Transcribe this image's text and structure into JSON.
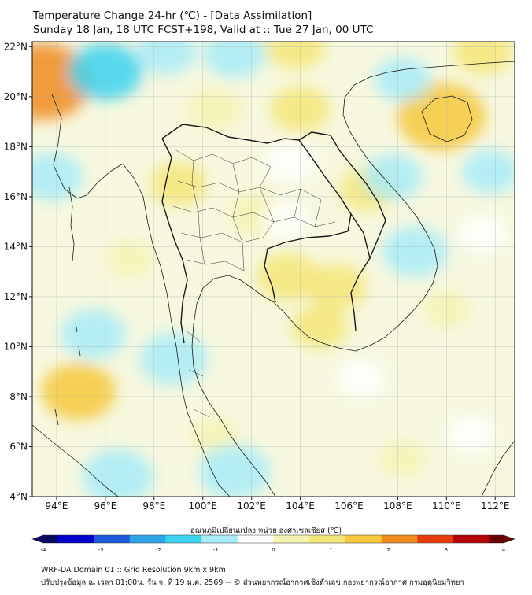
{
  "header": {
    "title": "Temperature Change 24-hr (℃) - [Data Assimilation]",
    "subtitle": "Sunday 18 Jan, 18 UTC FCST+198, Valid at :: Tue 27 Jan, 00 UTC"
  },
  "axes": {
    "lat_ticks": [
      "22°N",
      "20°N",
      "18°N",
      "16°N",
      "14°N",
      "12°N",
      "10°N",
      "8°N",
      "6°N",
      "4°N"
    ],
    "lat_values": [
      22,
      20,
      18,
      16,
      14,
      12,
      10,
      8,
      6,
      4
    ],
    "lon_ticks": [
      "94°E",
      "96°E",
      "98°E",
      "100°E",
      "102°E",
      "104°E",
      "106°E",
      "108°E",
      "110°E",
      "112°E"
    ],
    "lon_values": [
      94,
      96,
      98,
      100,
      102,
      104,
      106,
      108,
      110,
      112
    ],
    "lat_range": [
      4,
      22.2
    ],
    "lon_range": [
      93,
      112.8
    ]
  },
  "colorbar": {
    "label": "อุณหภูมิเปลี่ยนแปลง หน่วย องศาเซลเซียส (℃)",
    "tick_labels": [
      "-4",
      "-3",
      "-2",
      "-1",
      "0",
      "1",
      "2",
      "3",
      "4"
    ],
    "tick_values": [
      -4,
      -3,
      -2,
      -1,
      0,
      1,
      2,
      3,
      4
    ],
    "range": [
      -4,
      4
    ],
    "colors": [
      "#08085e",
      "#0000c8",
      "#1e5adc",
      "#2ca6e6",
      "#3cd2f0",
      "#a8ecf8",
      "#ffffff",
      "#f6f2b0",
      "#f4e678",
      "#f6c83c",
      "#f08c1e",
      "#e43c0c",
      "#b40000",
      "#640000"
    ]
  },
  "footer": {
    "line1": "WRF-DA Domain 01 :: Grid Resolution 9km x 9km",
    "line2": "ปรับปรุงข้อมูล ณ เวลา 01:00น. วัน จ. ที่ 19 ม.ค. 2569 -- © ส่วนพยากรณ์อากาศเชิงตัวเลข กองพยากรณ์อากาศ กรมอุตุนิยมวิทยา"
  },
  "anomalies": [
    {
      "lon": 93.4,
      "lat": 20.6,
      "value": 2.2
    },
    {
      "lon": 109.8,
      "lat": 19.2,
      "value": 1.8
    },
    {
      "lon": 94.9,
      "lat": 8.2,
      "value": 1.3
    },
    {
      "lon": 103.5,
      "lat": 12.8,
      "value": 0.9
    },
    {
      "lon": 105.5,
      "lat": 12.4,
      "value": 0.8
    },
    {
      "lon": 104.0,
      "lat": 19.5,
      "value": 0.8
    },
    {
      "lon": 99.0,
      "lat": 16.5,
      "value": 0.7
    },
    {
      "lon": 102.2,
      "lat": 15.3,
      "value": 0.6
    },
    {
      "lon": 106.8,
      "lat": 16.3,
      "value": 0.7
    },
    {
      "lon": 100.5,
      "lat": 19.5,
      "value": 0.6
    },
    {
      "lon": 104.8,
      "lat": 10.8,
      "value": 0.7
    },
    {
      "lon": 111.5,
      "lat": 21.8,
      "value": 0.8
    },
    {
      "lon": 103.8,
      "lat": 22.0,
      "value": 0.8
    },
    {
      "lon": 100.5,
      "lat": 6.4,
      "value": 0.3
    },
    {
      "lon": 97.0,
      "lat": 13.5,
      "value": 0.3
    },
    {
      "lon": 110.0,
      "lat": 11.5,
      "value": 0.3
    },
    {
      "lon": 108.2,
      "lat": 5.5,
      "value": 0.3
    },
    {
      "lon": 96.0,
      "lat": 21.0,
      "value": -1.3
    },
    {
      "lon": 98.5,
      "lat": 21.8,
      "value": -0.8
    },
    {
      "lon": 101.3,
      "lat": 21.7,
      "value": -0.9
    },
    {
      "lon": 93.8,
      "lat": 16.8,
      "value": -0.9
    },
    {
      "lon": 95.5,
      "lat": 10.5,
      "value": -1.0
    },
    {
      "lon": 96.5,
      "lat": 4.8,
      "value": -1.2
    },
    {
      "lon": 98.8,
      "lat": 9.5,
      "value": -1.1
    },
    {
      "lon": 101.3,
      "lat": 5.0,
      "value": -1.2
    },
    {
      "lon": 108.7,
      "lat": 13.8,
      "value": -1.0
    },
    {
      "lon": 107.8,
      "lat": 16.8,
      "value": -0.8
    },
    {
      "lon": 108.2,
      "lat": 20.7,
      "value": -0.7
    },
    {
      "lon": 111.8,
      "lat": 17.0,
      "value": -0.7
    },
    {
      "lon": 103.6,
      "lat": 17.4,
      "value": -0.5
    },
    {
      "lon": 103.4,
      "lat": 15.1,
      "value": -0.4
    },
    {
      "lon": 106.5,
      "lat": 8.7,
      "value": -0.4
    },
    {
      "lon": 111.5,
      "lat": 14.5,
      "value": -0.4
    },
    {
      "lon": 111.0,
      "lat": 6.5,
      "value": -0.4
    }
  ]
}
